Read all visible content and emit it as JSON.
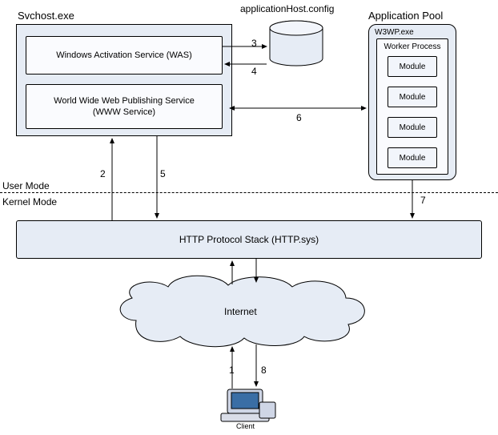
{
  "diagram": {
    "type": "flowchart",
    "background_color": "#ffffff",
    "box_border_color": "#000000",
    "panel_fill": "#e6ecf5",
    "box_fill": "#fafbfe",
    "module_fill": "#f2f5fb",
    "arrow_color": "#000000",
    "cloud_fill": "#e6ecf5",
    "font_family": "Arial",
    "label_fontsize": 12,
    "small_fontsize": 10
  },
  "svchost": {
    "title": "Svchost.exe",
    "was": "Windows Activation Service (WAS)",
    "www_line1": "World Wide Web Publishing Service",
    "www_line2": "(WWW Service)"
  },
  "config": {
    "label": "applicationHost.config"
  },
  "apppool": {
    "title": "Application Pool",
    "w3wp": "W3WP.exe",
    "worker_title": "Worker Process",
    "module_label": "Module",
    "module_count": 4
  },
  "modes": {
    "user": "User Mode",
    "kernel": "Kernel Mode"
  },
  "httpsys": {
    "label": "HTTP Protocol Stack (HTTP.sys)"
  },
  "internet": {
    "label": "Internet"
  },
  "client": {
    "label": "Client"
  },
  "steps": {
    "s1": "1",
    "s2": "2",
    "s3": "3",
    "s4": "4",
    "s5": "5",
    "s6": "6",
    "s7": "7",
    "s8": "8"
  }
}
